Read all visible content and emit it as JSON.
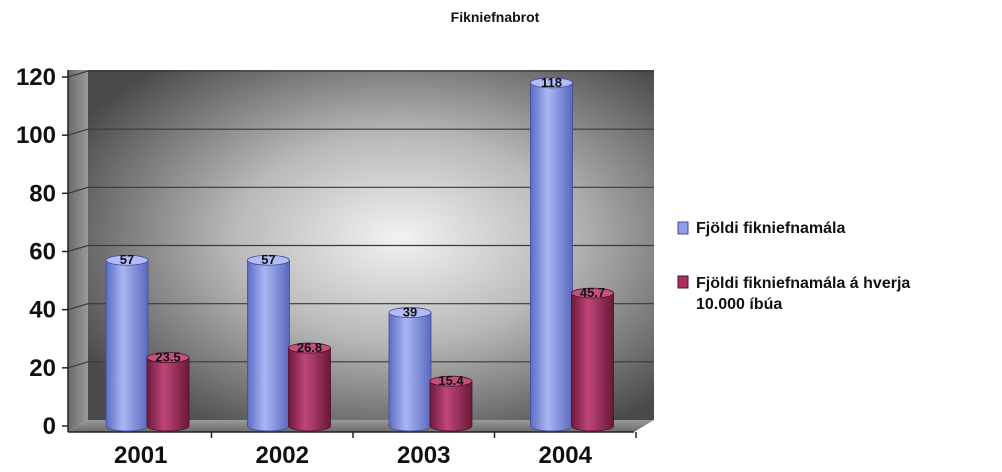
{
  "chart_data": {
    "type": "bar",
    "title": "Fikniefnabrot",
    "xlabel": "",
    "ylabel": "",
    "categories": [
      "2001",
      "2002",
      "2003",
      "2004"
    ],
    "ylim": [
      0,
      120
    ],
    "yticks": [
      "0",
      "20",
      "40",
      "60",
      "80",
      "100",
      "120"
    ],
    "grid": true,
    "legend_position": "right",
    "series": [
      {
        "name": "Fjöldi fikniefnamála",
        "values": [
          57,
          57,
          39,
          118
        ],
        "labels": [
          "57",
          "57",
          "39",
          "118"
        ],
        "color": "#8f9ee6"
      },
      {
        "name_lines": [
          "Fjöldi fikniefnamála á hverja",
          "10.000 íbúa"
        ],
        "values": [
          23.5,
          26.8,
          15.4,
          45.7
        ],
        "labels": [
          "23.5",
          "26.8",
          "15.4",
          "45.7"
        ],
        "color": "#a8305f"
      }
    ]
  }
}
